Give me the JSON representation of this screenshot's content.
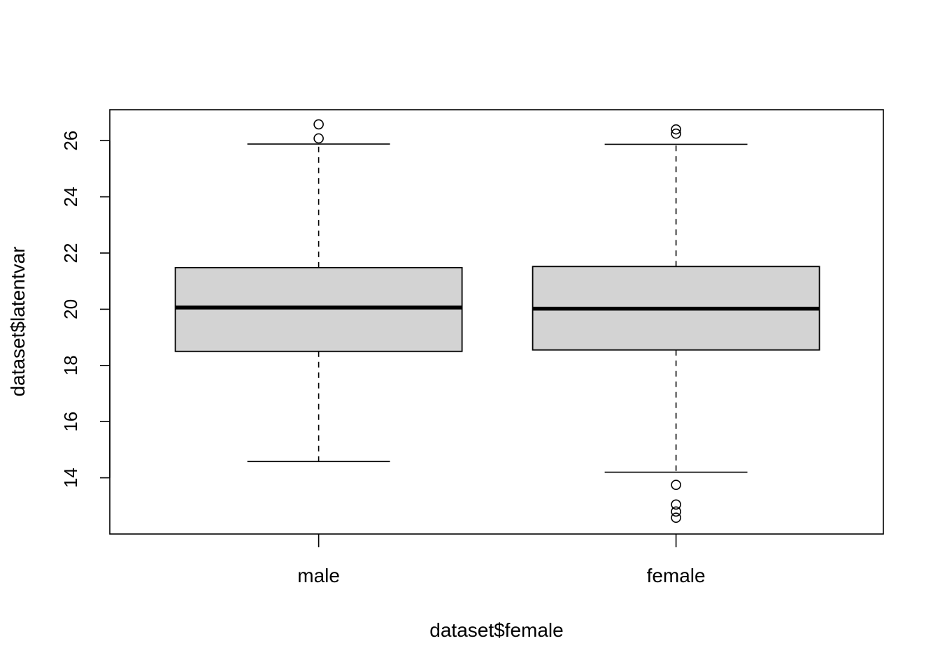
{
  "chart_data": {
    "type": "boxplot",
    "xlabel": "dataset$female",
    "ylabel": "dataset$latentvar",
    "ylim": [
      12.0,
      27.1
    ],
    "yticks": [
      14,
      16,
      18,
      20,
      22,
      24,
      26
    ],
    "grid": false,
    "categories": [
      "male",
      "female"
    ],
    "colors": {
      "box_fill": "#d3d3d3",
      "stroke": "#000000"
    },
    "boxes": [
      {
        "category": "male",
        "whisker_low": 14.58,
        "q1": 18.5,
        "median": 20.06,
        "q3": 21.48,
        "whisker_high": 25.88,
        "outliers": [
          26.08,
          26.58
        ]
      },
      {
        "category": "female",
        "whisker_low": 14.2,
        "q1": 18.55,
        "median": 20.02,
        "q3": 21.52,
        "whisker_high": 25.87,
        "outliers": [
          26.25,
          26.4,
          13.75,
          13.05,
          12.8,
          12.58
        ]
      }
    ]
  }
}
